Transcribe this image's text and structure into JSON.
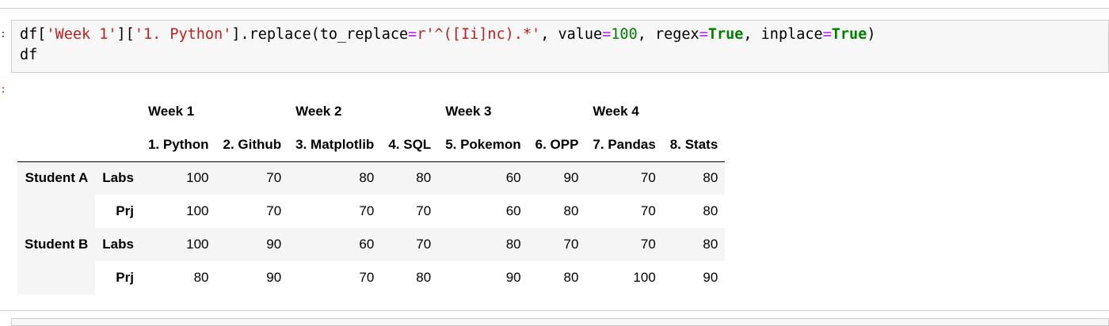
{
  "prompts": {
    "in": ":",
    "out": ":"
  },
  "code_cell": {
    "line1": {
      "p1": "df[",
      "s1": "'Week 1'",
      "p2": "][",
      "s2": "'1. Python'",
      "p3": "].replace(to_replace",
      "eq1": "=",
      "s3": "r'^([Ii]nc).*'",
      "p4": ", value",
      "eq2": "=",
      "n1": "100",
      "p5": ", regex",
      "eq3": "=",
      "kw1": "True",
      "p6": ", inplace",
      "eq4": "=",
      "kw2": "True",
      "p7": ")"
    },
    "line2": "df"
  },
  "dataframe": {
    "week_headers": [
      "Week 1",
      "Week 2",
      "Week 3",
      "Week 4"
    ],
    "topic_headers": [
      "1. Python",
      "2. Github",
      "3. Matplotlib",
      "4. SQL",
      "5. Pokemon",
      "6. OPP",
      "7. Pandas",
      "8. Stats"
    ],
    "rows": [
      {
        "student": "Student A",
        "metric": "Labs",
        "values": [
          "100",
          "70",
          "80",
          "80",
          "60",
          "90",
          "70",
          "80"
        ]
      },
      {
        "student": "",
        "metric": "Prj",
        "values": [
          "100",
          "70",
          "70",
          "70",
          "60",
          "80",
          "70",
          "80"
        ]
      },
      {
        "student": "Student B",
        "metric": "Labs",
        "values": [
          "100",
          "90",
          "60",
          "70",
          "80",
          "70",
          "70",
          "80"
        ]
      },
      {
        "student": "",
        "metric": "Prj",
        "values": [
          "80",
          "90",
          "70",
          "80",
          "90",
          "80",
          "100",
          "90"
        ]
      }
    ]
  }
}
